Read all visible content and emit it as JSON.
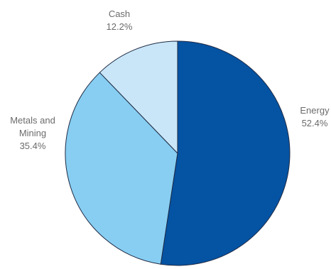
{
  "chart_data": {
    "type": "pie",
    "categories": [
      "Energy",
      "Metals and Mining",
      "Cash"
    ],
    "values": [
      52.4,
      35.4,
      12.2
    ],
    "value_labels": [
      "52.4%",
      "35.4%",
      "12.2%"
    ],
    "label_lines": [
      [
        "Energy"
      ],
      [
        "Metals and",
        "Mining"
      ],
      [
        "Cash"
      ]
    ],
    "colors": [
      "#0553a3",
      "#87cef2",
      "#c8e6f8"
    ],
    "start": "top, clockwise",
    "legend": "none",
    "title": ""
  }
}
